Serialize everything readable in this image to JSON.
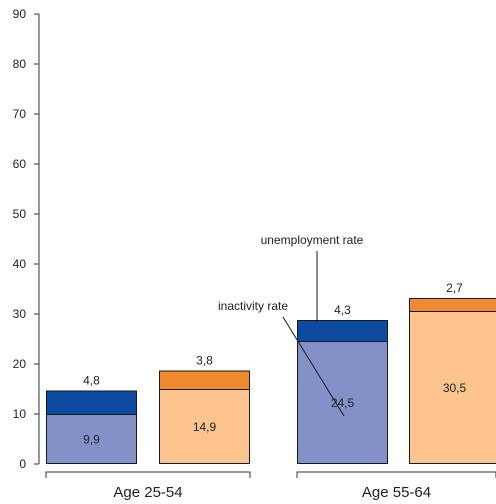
{
  "chart_data": {
    "type": "bar",
    "stacked": true,
    "ylim": [
      0,
      90
    ],
    "yticks": [
      0,
      10,
      20,
      30,
      40,
      50,
      60,
      70,
      80,
      90
    ],
    "groups": [
      "Age 25-54",
      "Age 55-64"
    ],
    "bars": [
      {
        "group": "Age 25-54",
        "inactivity": 9.9,
        "unemployment": 4.8,
        "inactivity_label": "9,9",
        "unemployment_label": "4,8",
        "palette": "blue"
      },
      {
        "group": "Age 25-54",
        "inactivity": 14.9,
        "unemployment": 3.8,
        "inactivity_label": "14,9",
        "unemployment_label": "3,8",
        "palette": "orange"
      },
      {
        "group": "Age 55-64",
        "inactivity": 24.5,
        "unemployment": 4.3,
        "inactivity_label": "24,5",
        "unemployment_label": "4,3",
        "palette": "blue"
      },
      {
        "group": "Age 55-64",
        "inactivity": 30.5,
        "unemployment": 2.7,
        "inactivity_label": "30,5",
        "unemployment_label": "2,7",
        "palette": "orange"
      }
    ],
    "annotations": {
      "unemployment": "unemployment rate",
      "inactivity": "inactivity rate"
    },
    "colors": {
      "blue_inactivity": "#8490C8",
      "blue_unemployment": "#0D4BA0",
      "orange_inactivity": "#FCC590",
      "orange_unemployment": "#F08A30",
      "axis": "#333333"
    }
  }
}
